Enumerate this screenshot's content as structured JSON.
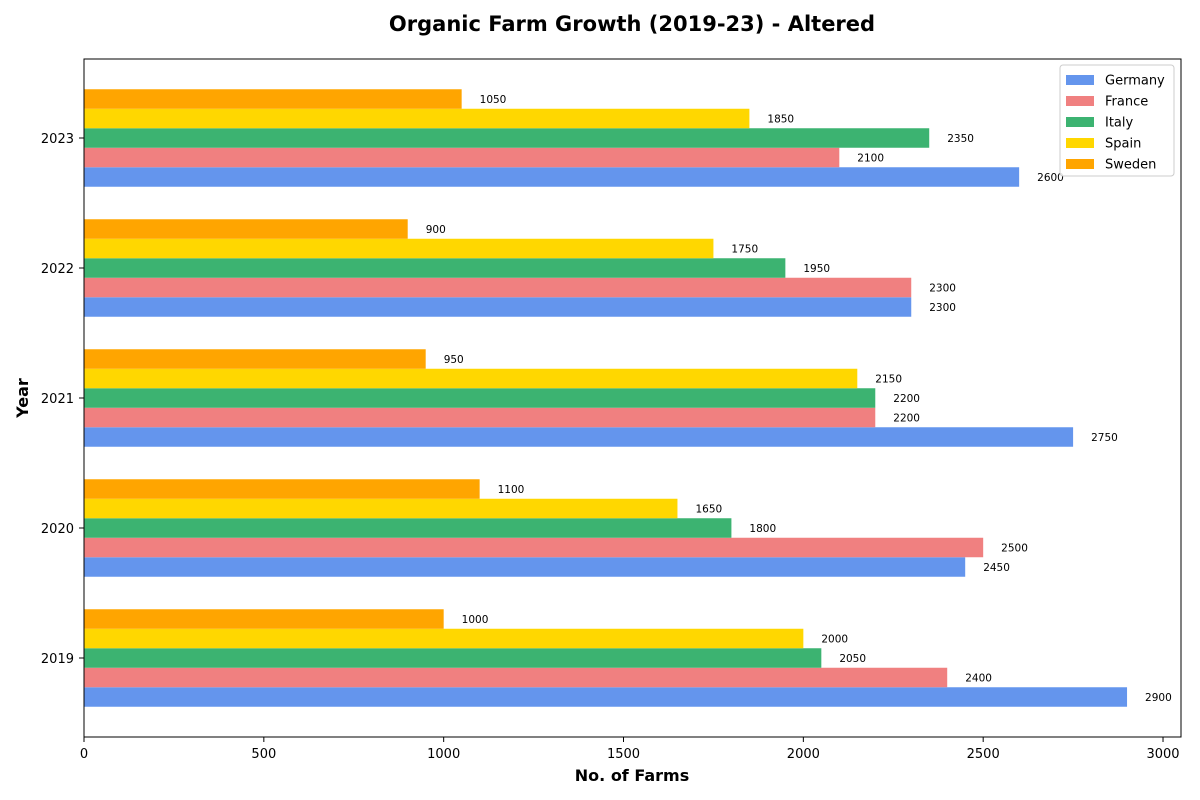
{
  "chart_data": {
    "type": "bar",
    "orientation": "horizontal",
    "title": "Organic Farm Growth (2019-23) - Altered",
    "xlabel": "No. of Farms",
    "ylabel": "Year",
    "categories": [
      "2019",
      "2020",
      "2021",
      "2022",
      "2023"
    ],
    "xlim": [
      0,
      3050
    ],
    "xticks": [
      0,
      500,
      1000,
      1500,
      2000,
      2500,
      3000
    ],
    "grid": false,
    "legend_position": "top-right",
    "series": [
      {
        "name": "Germany",
        "color": "#6495ED",
        "values": [
          2900,
          2450,
          2750,
          2300,
          2600
        ]
      },
      {
        "name": "France",
        "color": "#F08080",
        "values": [
          2400,
          2500,
          2200,
          2300,
          2100
        ]
      },
      {
        "name": "Italy",
        "color": "#3CB371",
        "values": [
          2050,
          1800,
          2200,
          1950,
          2350
        ]
      },
      {
        "name": "Spain",
        "color": "#FFD700",
        "values": [
          2000,
          1650,
          2150,
          1750,
          1850
        ]
      },
      {
        "name": "Sweden",
        "color": "#FFA500",
        "values": [
          1000,
          1100,
          950,
          900,
          1050
        ]
      }
    ]
  }
}
